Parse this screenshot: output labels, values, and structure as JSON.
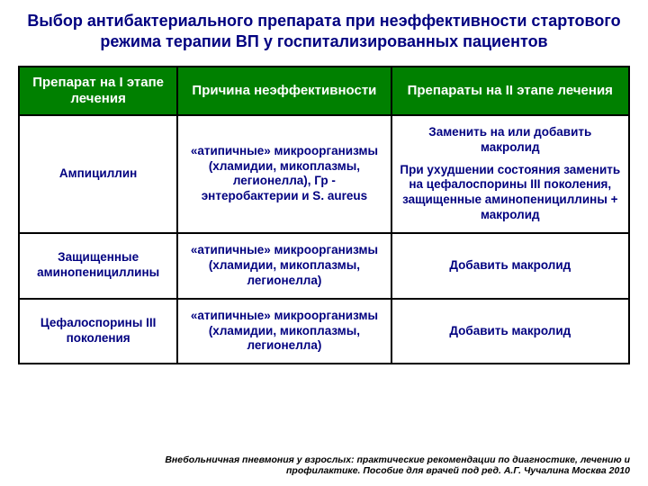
{
  "title": "Выбор антибактериального препарата при неэффективности стартового режима терапии ВП у госпитализированных пациентов",
  "headers": {
    "col1": "Препарат на I этапе лечения",
    "col2": "Причина неэффективности",
    "col3": "Препараты на II этапе лечения"
  },
  "rows": [
    {
      "drug": "Ампициллин",
      "reason": "«атипичные» микроорганизмы (хламидии, микоплазмы, легионелла), Гр - энтеробактерии и S. aureus",
      "action_top": "Заменить на или добавить макролид",
      "action_bottom": "При ухудшении состояния заменить на цефалоспорины III поколения, защищенные аминопенициллины + макролид"
    },
    {
      "drug": "Защищенные аминопенициллины",
      "reason": "«атипичные» микроорганизмы (хламидии, микоплазмы, легионелла)",
      "action": "Добавить макролид"
    },
    {
      "drug": "Цефалоспорины III поколения",
      "reason": "«атипичные» микроорганизмы (хламидии, микоплазмы, легионелла)",
      "action": "Добавить макролид"
    }
  ],
  "footnote": "Внебольничная пневмония у взрослых: практические рекомендации по диагностике, лечению и профилактике. Пособие для врачей под ред. А.Г. Чучалина Москва 2010",
  "colors": {
    "header_bg": "#008000",
    "header_text": "#ffffff",
    "title_text": "#000080",
    "cell_text": "#000080",
    "border": "#000000",
    "background": "#ffffff"
  },
  "fonts": {
    "title_size": 18,
    "header_size": 15,
    "cell_size": 13.5,
    "footnote_size": 10.5
  }
}
